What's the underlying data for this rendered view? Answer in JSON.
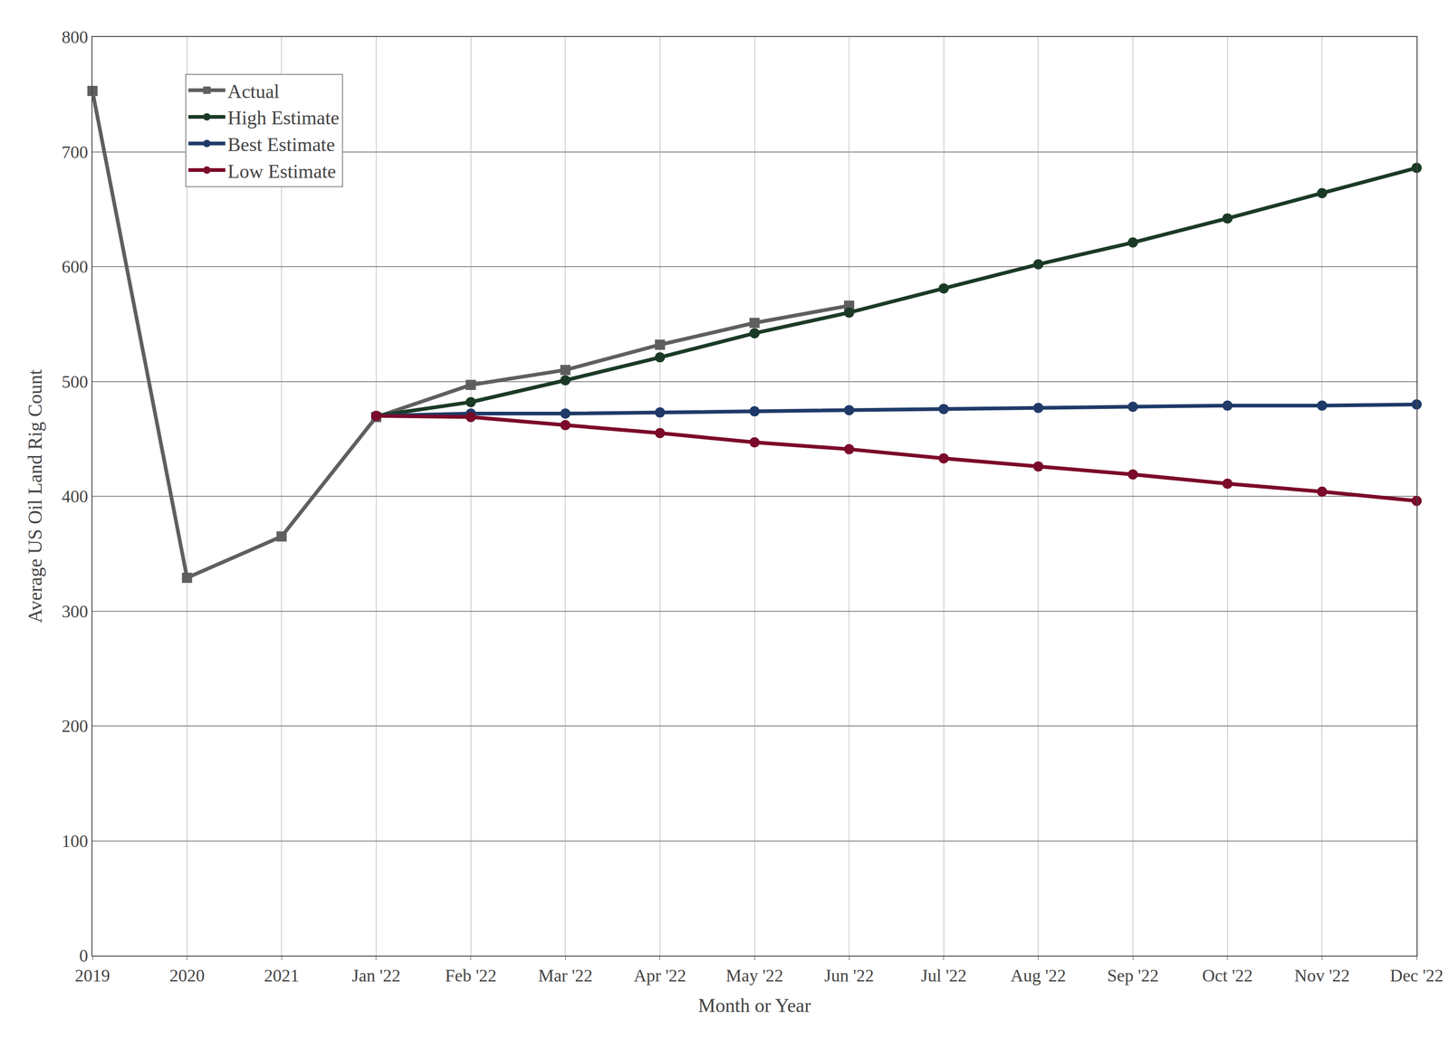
{
  "chart_data": {
    "type": "line",
    "x_label": "Month or Year",
    "y_label": "Average US Oil Land Rig Count",
    "categories": [
      "2019",
      "2020",
      "2021",
      "Jan '22",
      "Feb '22",
      "Mar '22",
      "Apr '22",
      "May '22",
      "Jun '22",
      "Jul '22",
      "Aug '22",
      "Sep '22",
      "Oct '22",
      "Nov '22",
      "Dec '22"
    ],
    "series": [
      {
        "name": "Actual",
        "color": "#5f5f5f",
        "marker": "square",
        "values": [
          753,
          329,
          365,
          469,
          497,
          510,
          532,
          551,
          566,
          null,
          null,
          null,
          null,
          null,
          null
        ]
      },
      {
        "name": "High Estimate",
        "color": "#1b3a26",
        "marker": "circle",
        "values": [
          null,
          null,
          null,
          470,
          482,
          501,
          521,
          542,
          560,
          581,
          602,
          621,
          642,
          664,
          686
        ]
      },
      {
        "name": "Best Estimate",
        "color": "#1f3a68",
        "marker": "circle",
        "values": [
          null,
          null,
          null,
          470,
          472,
          472,
          473,
          474,
          475,
          476,
          477,
          478,
          479,
          479,
          480
        ]
      },
      {
        "name": "Low Estimate",
        "color": "#7b0a2a",
        "marker": "circle",
        "values": [
          null,
          null,
          null,
          470,
          469,
          462,
          455,
          447,
          441,
          433,
          426,
          419,
          411,
          404,
          396
        ]
      }
    ],
    "ylim": [
      0,
      800
    ],
    "yticks": [
      0,
      100,
      200,
      300,
      400,
      500,
      600,
      700,
      800
    ],
    "grid": true,
    "legend": "top-left"
  }
}
